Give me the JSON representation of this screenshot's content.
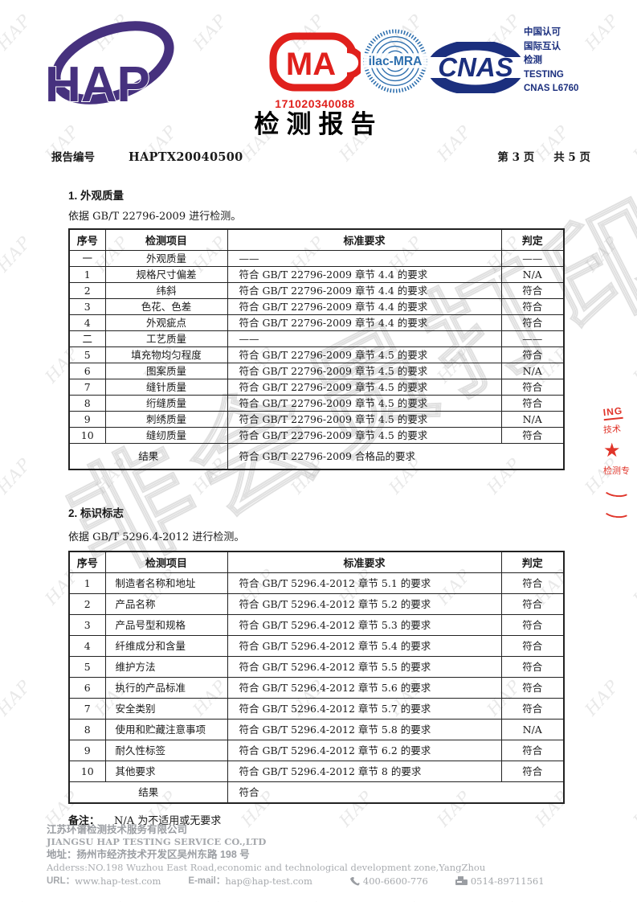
{
  "header": {
    "logo_text": "HAP",
    "cma": {
      "letters": "MA",
      "number": "171020340088"
    },
    "ilac_text": "ilac-MRA",
    "cnas_text": "CNAS",
    "accreditation_lines": [
      "中国认可",
      "国际互认",
      "检测",
      "TESTING",
      "CNAS L6760"
    ]
  },
  "title": "检测报告",
  "report_no": {
    "label": "报告编号",
    "value": "HAPTX20040500",
    "page": "第 3 页",
    "total": "共 5 页"
  },
  "section1": {
    "heading": "1.  外观质量",
    "basis": "依据  GB/T 22796-2009 进行检测。",
    "columns": [
      "序号",
      "检测项目",
      "标准要求",
      "判定"
    ],
    "rows": [
      [
        "一",
        "外观质量",
        "——",
        "——"
      ],
      [
        "1",
        "规格尺寸偏差",
        "符合 GB/T 22796-2009  章节 4.4 的要求",
        "N/A"
      ],
      [
        "2",
        "纬斜",
        "符合 GB/T 22796-2009  章节 4.4 的要求",
        "符合"
      ],
      [
        "3",
        "色花、色差",
        "符合 GB/T 22796-2009  章节 4.4 的要求",
        "符合"
      ],
      [
        "4",
        "外观疵点",
        "符合 GB/T 22796-2009  章节 4.4 的要求",
        "符合"
      ],
      [
        "二",
        "工艺质量",
        "——",
        "——"
      ],
      [
        "5",
        "填充物均匀程度",
        "符合 GB/T 22796-2009  章节 4.5 的要求",
        "符合"
      ],
      [
        "6",
        "图案质量",
        "符合 GB/T 22796-2009  章节 4.5 的要求",
        "N/A"
      ],
      [
        "7",
        "缝针质量",
        "符合 GB/T 22796-2009  章节 4.5 的要求",
        "符合"
      ],
      [
        "8",
        "绗缝质量",
        "符合 GB/T 22796-2009  章节 4.5 的要求",
        "符合"
      ],
      [
        "9",
        "刺绣质量",
        "符合 GB/T 22796-2009  章节 4.5 的要求",
        "N/A"
      ],
      [
        "10",
        "缝纫质量",
        "符合 GB/T 22796-2009  章节 4.5 的要求",
        "符合"
      ]
    ],
    "result_label": "结果",
    "result_value": "符合  GB/T 22796-2009  合格品的要求"
  },
  "section2": {
    "heading": "2.  标识标志",
    "basis": "依据  GB/T 5296.4-2012 进行检测。",
    "columns": [
      "序号",
      "检测项目",
      "标准要求",
      "判定"
    ],
    "rows": [
      [
        "1",
        "制造者名称和地址",
        "符合  GB/T 5296.4-2012  章节 5.1 的要求",
        "符合"
      ],
      [
        "2",
        "产品名称",
        "符合  GB/T 5296.4-2012  章节 5.2 的要求",
        "符合"
      ],
      [
        "3",
        "产品号型和规格",
        "符合  GB/T 5296.4-2012  章节 5.3 的要求",
        "符合"
      ],
      [
        "4",
        "纤维成分和含量",
        "符合  GB/T 5296.4-2012  章节 5.4 的要求",
        "符合"
      ],
      [
        "5",
        "维护方法",
        "符合  GB/T 5296.4-2012  章节 5.5 的要求",
        "符合"
      ],
      [
        "6",
        "执行的产品标准",
        "符合  GB/T 5296.4-2012  章节 5.6 的要求",
        "符合"
      ],
      [
        "7",
        "安全类别",
        "符合  GB/T 5296.4-2012  章节 5.7 的要求",
        "符合"
      ],
      [
        "8",
        "使用和贮藏注意事项",
        "符合  GB/T 5296.4-2012  章节 5.8 的要求",
        "N/A"
      ],
      [
        "9",
        "耐久性标签",
        "符合  GB/T 5296.4-2012  章节 6.2 的要求",
        "符合"
      ],
      [
        "10",
        "其他要求",
        "符合  GB/T 5296.4-2012  章节 8 的要求",
        "符合"
      ]
    ],
    "result_label": "结果",
    "result_value": "符合"
  },
  "remark": {
    "label": "备注：",
    "text": "N/A 为不适用或无要求"
  },
  "footer": {
    "company_cn": "江苏环谱检测技术服务有限公司",
    "company_en": "JIANGSU HAP TESTING SERVICE CO.,LTD",
    "address_cn": "地址：扬州市经济技术开发区吴州东路 198 号",
    "address_en": "Adderss:NO.198 Wuzhou East Road,economic and technological development zone,YangZhou",
    "url_label": "URL：",
    "url": "www.hap-test.com",
    "email_label": "E-mail：",
    "email": "hap@hap-test.com",
    "phone": "400-6600-776",
    "fax": "0514-89711561"
  },
  "seal": {
    "arc_text": "ING",
    "line2": "技术",
    "star": "★",
    "line3": "检测专"
  },
  "watermark": {
    "tile": "HAP",
    "big": "非会员打印"
  },
  "colors": {
    "hap_purple": "#46317e",
    "cma_red": "#e0201c",
    "ilac_blue": "#2e6fae",
    "cnas_navy": "#1b2f7e",
    "seal_red": "#e0352a",
    "footer_gray": "#9b9ea3"
  }
}
